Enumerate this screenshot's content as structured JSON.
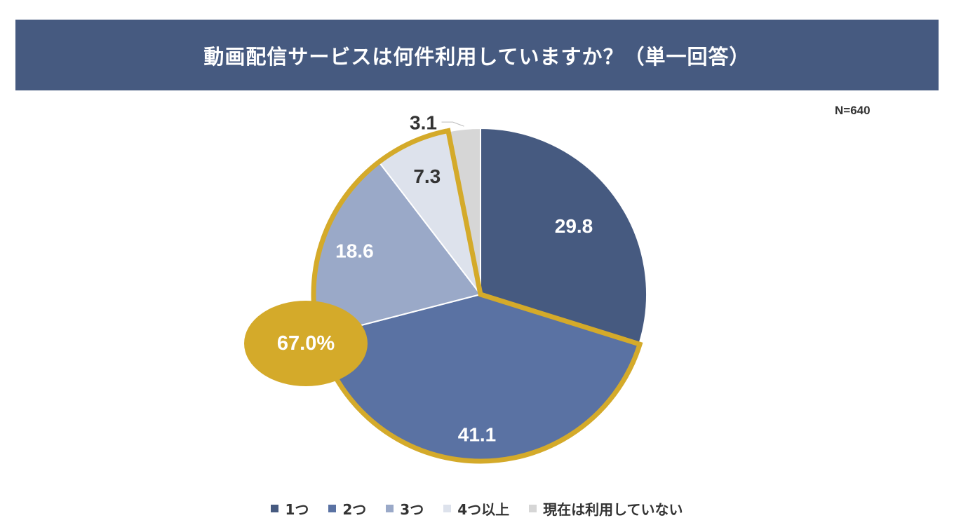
{
  "chart_data": {
    "type": "pie",
    "title": "動画配信サービスは何件利用していますか？（単一回答）",
    "note": "N=640",
    "categories": [
      "1つ",
      "2つ",
      "3つ",
      "4つ以上",
      "現在は利用していない"
    ],
    "values": [
      29.8,
      41.1,
      18.6,
      7.3,
      3.1
    ],
    "value_labels": [
      "29.8",
      "41.1",
      "18.6",
      "7.3",
      "3.1"
    ],
    "colors": [
      "#465a80",
      "#5a72a3",
      "#9aa9c8",
      "#dde2ec",
      "#d6d6d6"
    ],
    "highlight": {
      "label": "67.0%",
      "categories": [
        "2つ",
        "3つ",
        "4つ以上"
      ],
      "color": "#d4aa2a"
    },
    "legend_position": "bottom"
  }
}
